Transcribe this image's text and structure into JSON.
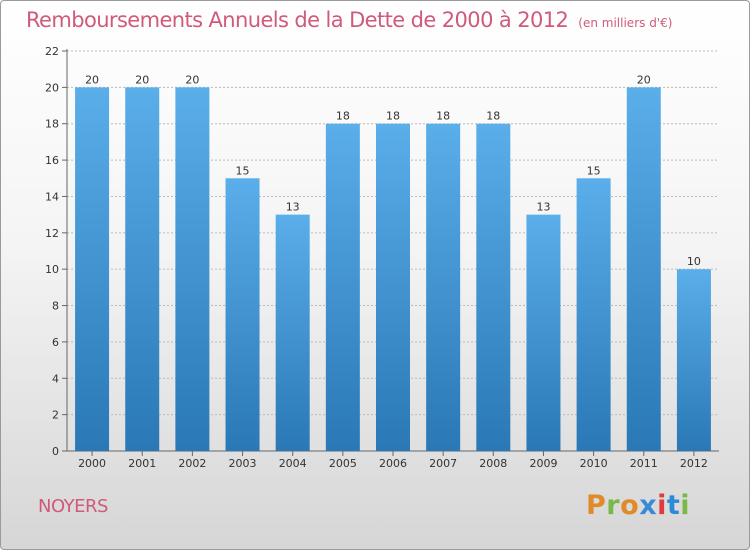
{
  "header": {
    "title": "Remboursements Annuels de la Dette de 2000 à 2012",
    "subtitle": "(en milliers d'€)"
  },
  "footer": {
    "city": "NOYERS",
    "logo_text": "Proxiti"
  },
  "colors": {
    "title": "#d05a7a",
    "bar_top": "#5aaeea",
    "bar_bottom": "#2a78b6",
    "grid": "#bbbbbb",
    "logo_letters": [
      "#e08a2a",
      "#7ab84a",
      "#e08a2a",
      "#3a8ad8",
      "#e03a3a",
      "#2a8ad8",
      "#7ab84a"
    ]
  },
  "chart_data": {
    "type": "bar",
    "title": "Remboursements Annuels de la Dette de 2000 à 2012",
    "subtitle": "(en milliers d'€)",
    "xlabel": "",
    "ylabel": "",
    "categories": [
      "2000",
      "2001",
      "2002",
      "2003",
      "2004",
      "2005",
      "2006",
      "2007",
      "2008",
      "2009",
      "2010",
      "2011",
      "2012"
    ],
    "values": [
      20,
      20,
      20,
      15,
      13,
      18,
      18,
      18,
      18,
      13,
      15,
      20,
      10
    ],
    "ylim": [
      0,
      22
    ],
    "yticks": [
      0,
      2,
      4,
      6,
      8,
      10,
      12,
      14,
      16,
      18,
      20,
      22
    ],
    "grid": true,
    "legend": "none"
  }
}
